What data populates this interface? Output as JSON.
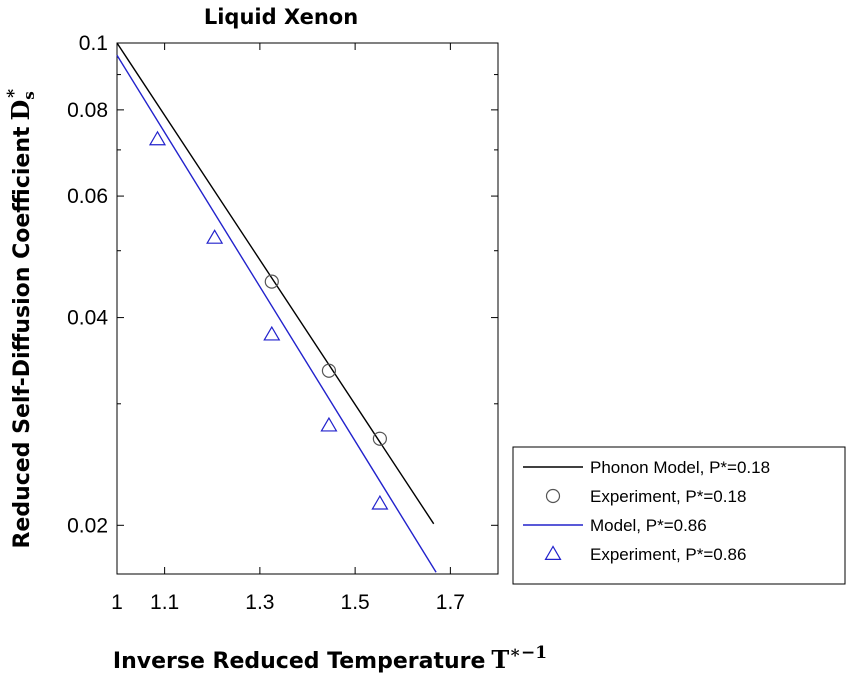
{
  "chart_data": {
    "type": "scatter",
    "title": "Liquid Xenon",
    "xlabel": "Inverse Reduced Temperature",
    "xlabel_math": "T",
    "xlabel_math_sup": "∗−1",
    "ylabel": "Reduced Self-Diffusion Coefficient",
    "ylabel_math": "D",
    "ylabel_math_sub": "s",
    "ylabel_math_sup": "∗",
    "xlim": [
      1.0,
      1.8
    ],
    "ylim": [
      0.017,
      0.1
    ],
    "yscale": "log",
    "xticks": [
      1.0,
      1.1,
      1.3,
      1.5,
      1.7
    ],
    "xtick_labels": [
      "1",
      "1.1",
      "1.3",
      "1.5",
      "1.7"
    ],
    "yticks": [
      0.02,
      0.04,
      0.06,
      0.08,
      0.1
    ],
    "ytick_labels": [
      "0.02",
      "0.04",
      "0.06",
      "0.08",
      "0.1"
    ],
    "yminor_ticks": [
      0.03,
      0.05,
      0.07,
      0.09
    ],
    "grid": false,
    "legend_position": "bottom-right, outside plot",
    "series": [
      {
        "name": "Phonon Model, P*=0.18",
        "kind": "line",
        "color": "#000000",
        "x": [
          1.0,
          1.665
        ],
        "y": [
          0.1,
          0.0201
        ]
      },
      {
        "name": "Experiment, P*=0.18",
        "kind": "marker",
        "marker": "circle",
        "color": "#555555",
        "x": [
          1.325,
          1.445,
          1.552
        ],
        "y": [
          0.0451,
          0.0335,
          0.0267
        ]
      },
      {
        "name": "Model, P*=0.86",
        "kind": "line",
        "color": "#2222cc",
        "x": [
          1.0,
          1.67
        ],
        "y": [
          0.096,
          0.0171
        ]
      },
      {
        "name": "Experiment, P*=0.86",
        "kind": "marker",
        "marker": "triangle",
        "color": "#2222cc",
        "x": [
          1.085,
          1.205,
          1.325,
          1.445,
          1.552
        ],
        "y": [
          0.0725,
          0.0522,
          0.0378,
          0.0279,
          0.0215
        ]
      }
    ]
  }
}
